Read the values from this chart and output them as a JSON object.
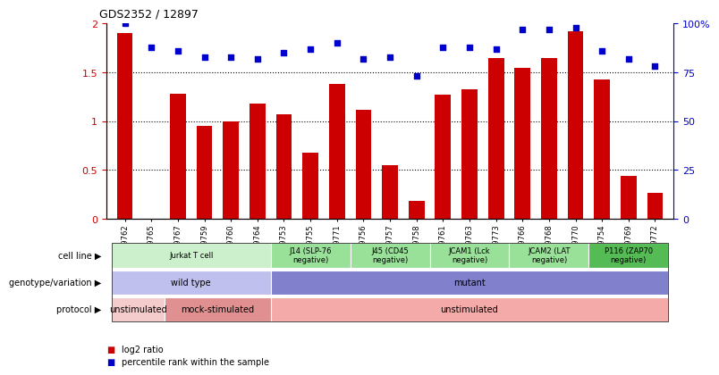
{
  "title": "GDS2352 / 12897",
  "samples": [
    "GSM89762",
    "GSM89765",
    "GSM89767",
    "GSM89759",
    "GSM89760",
    "GSM89764",
    "GSM89753",
    "GSM89755",
    "GSM89771",
    "GSM89756",
    "GSM89757",
    "GSM89758",
    "GSM89761",
    "GSM89763",
    "GSM89773",
    "GSM89766",
    "GSM89768",
    "GSM89770",
    "GSM89754",
    "GSM89769",
    "GSM89772"
  ],
  "log2_ratio": [
    1.9,
    0.0,
    1.28,
    0.95,
    1.0,
    1.18,
    1.07,
    0.68,
    1.38,
    1.12,
    0.55,
    0.18,
    1.27,
    1.33,
    1.65,
    1.55,
    1.65,
    1.92,
    1.43,
    0.44,
    0.27
  ],
  "percentile": [
    100,
    88,
    86,
    83,
    83,
    82,
    85,
    87,
    90,
    82,
    83,
    73,
    88,
    88,
    87,
    97,
    97,
    98,
    86,
    82,
    78
  ],
  "bar_color": "#cc0000",
  "dot_color": "#0000cc",
  "ylim_left": [
    0,
    2
  ],
  "ylim_right": [
    0,
    100
  ],
  "yticks_left": [
    0,
    0.5,
    1.0,
    1.5,
    2.0
  ],
  "yticks_right": [
    0,
    25,
    50,
    75,
    100
  ],
  "ytick_labels_right": [
    "0",
    "25",
    "50",
    "75",
    "100%"
  ],
  "dotted_lines": [
    0.5,
    1.0,
    1.5
  ],
  "cell_line_colors_light": "#ccf0cc",
  "cell_line_colors_med": "#99e099",
  "cell_line_colors_dark": "#55bb55",
  "genotype_wt_color": "#c0c0ee",
  "genotype_mut_color": "#8080cc",
  "protocol_unstim_light": "#f5cccc",
  "protocol_mock_color": "#e09090",
  "protocol_unstim_dark": "#f5aaaa",
  "cell_line_groups": [
    {
      "label": "Jurkat T cell",
      "start": 0,
      "end": 6
    },
    {
      "label": "J14 (SLP-76\nnegative)",
      "start": 6,
      "end": 9
    },
    {
      "label": "J45 (CD45\nnegative)",
      "start": 9,
      "end": 12
    },
    {
      "label": "JCAM1 (Lck\nnegative)",
      "start": 12,
      "end": 15
    },
    {
      "label": "JCAM2 (LAT\nnegative)",
      "start": 15,
      "end": 18
    },
    {
      "label": "P116 (ZAP70\nnegative)",
      "start": 18,
      "end": 21
    }
  ],
  "genotype_groups": [
    {
      "label": "wild type",
      "start": 0,
      "end": 6
    },
    {
      "label": "mutant",
      "start": 6,
      "end": 21
    }
  ],
  "protocol_groups": [
    {
      "label": "unstimulated",
      "start": 0,
      "end": 2
    },
    {
      "label": "mock-stimulated",
      "start": 2,
      "end": 6
    },
    {
      "label": "unstimulated",
      "start": 6,
      "end": 21
    }
  ],
  "row_labels": [
    "cell line",
    "genotype/variation",
    "protocol"
  ],
  "legend_items": [
    {
      "color": "#cc0000",
      "label": "log2 ratio"
    },
    {
      "color": "#0000cc",
      "label": "percentile rank within the sample"
    }
  ]
}
